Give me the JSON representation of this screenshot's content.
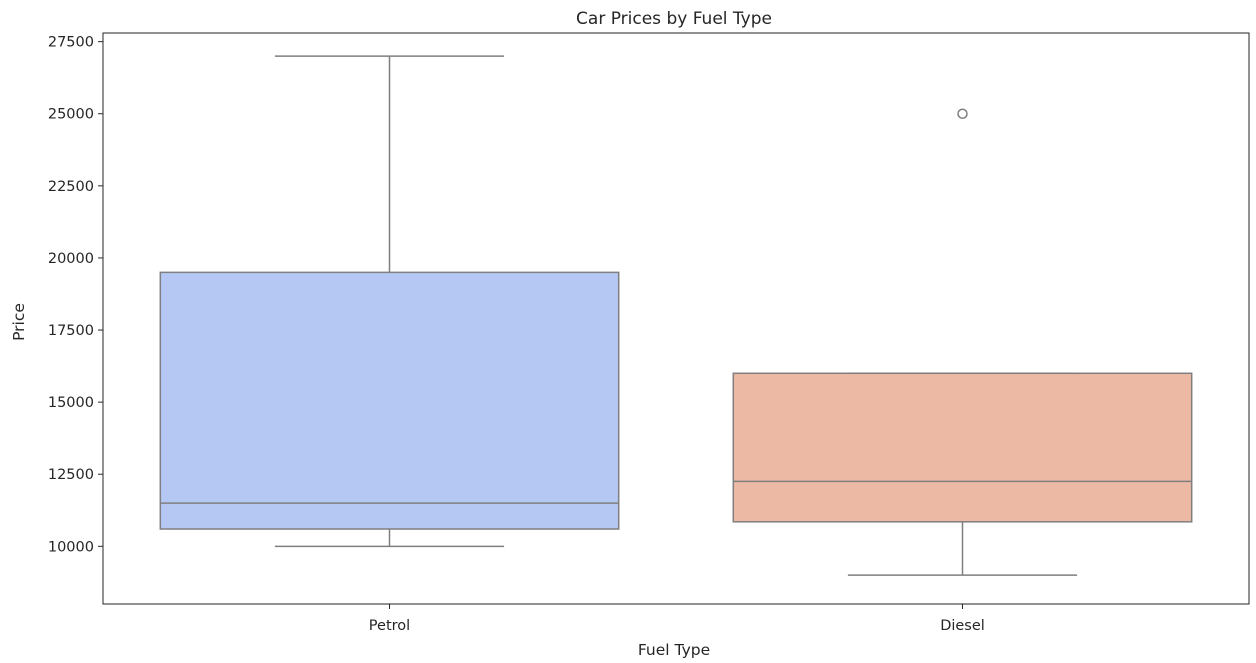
{
  "chart_data": {
    "type": "box",
    "title": "Car Prices by Fuel Type",
    "xlabel": "Fuel Type",
    "ylabel": "Price",
    "ylim": [
      8000,
      27800
    ],
    "yticks": [
      10000,
      12500,
      15000,
      17500,
      20000,
      22500,
      25000,
      27500
    ],
    "categories": [
      "Petrol",
      "Diesel"
    ],
    "boxes": [
      {
        "category": "Petrol",
        "whisker_low": 10000,
        "q1": 10600,
        "median": 11500,
        "q3": 19500,
        "whisker_high": 27000,
        "outliers": [],
        "color": "#b5c8f3"
      },
      {
        "category": "Diesel",
        "whisker_low": 9000,
        "q1": 10850,
        "median": 12250,
        "q3": 16000,
        "whisker_high": 16000,
        "outliers": [
          25000
        ],
        "color": "#ecbaa4"
      }
    ],
    "grid": false,
    "legend": "none"
  }
}
